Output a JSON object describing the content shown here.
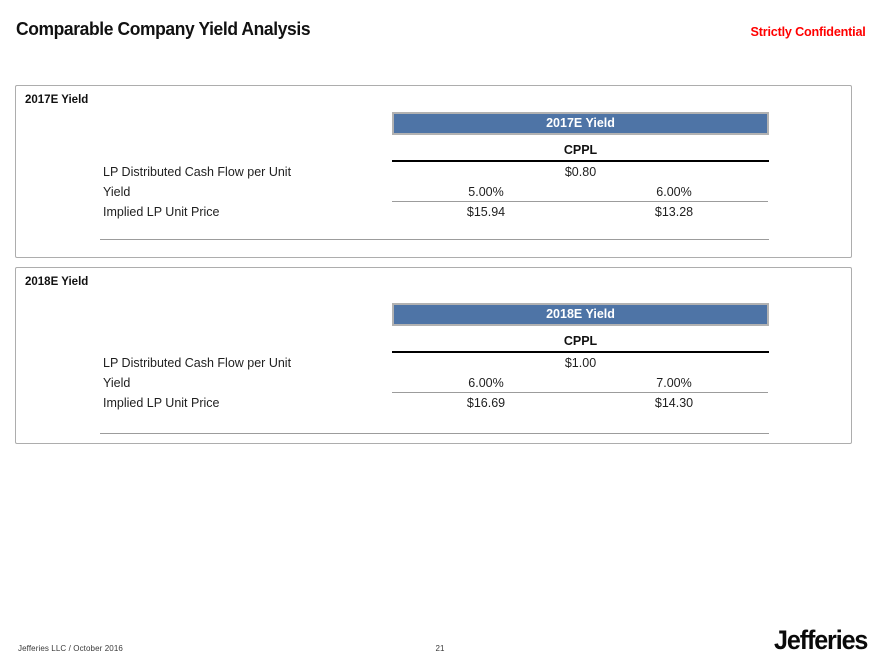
{
  "header": {
    "title": "Comparable Company Yield Analysis",
    "confidential": "Strictly Confidential"
  },
  "colors": {
    "accent_blue": "#4E74A6",
    "banner_border": "#B2B2B2",
    "confidential_red": "#FF0000",
    "rule_gray": "#9C9C9C",
    "box_border": "#ADADAD"
  },
  "sections": [
    {
      "label": "2017E Yield",
      "banner": "2017E Yield",
      "entity": "CPPL",
      "dcf_label": "LP Distributed Cash Flow per Unit",
      "dcf_value": "$0.80",
      "yield_label": "Yield",
      "yield_low": "5.00%",
      "yield_high": "6.00%",
      "price_label": "Implied LP Unit Price",
      "price_low": "$15.94",
      "price_high": "$13.28"
    },
    {
      "label": "2018E Yield",
      "banner": "2018E Yield",
      "entity": "CPPL",
      "dcf_label": "LP Distributed Cash Flow per Unit",
      "dcf_value": "$1.00",
      "yield_label": "Yield",
      "yield_low": "6.00%",
      "yield_high": "7.00%",
      "price_label": "Implied LP Unit Price",
      "price_low": "$16.69",
      "price_high": "$14.30"
    }
  ],
  "footer": {
    "source": "Jefferies LLC / October 2016",
    "page_number": "21",
    "logo_text": "Jefferies"
  }
}
